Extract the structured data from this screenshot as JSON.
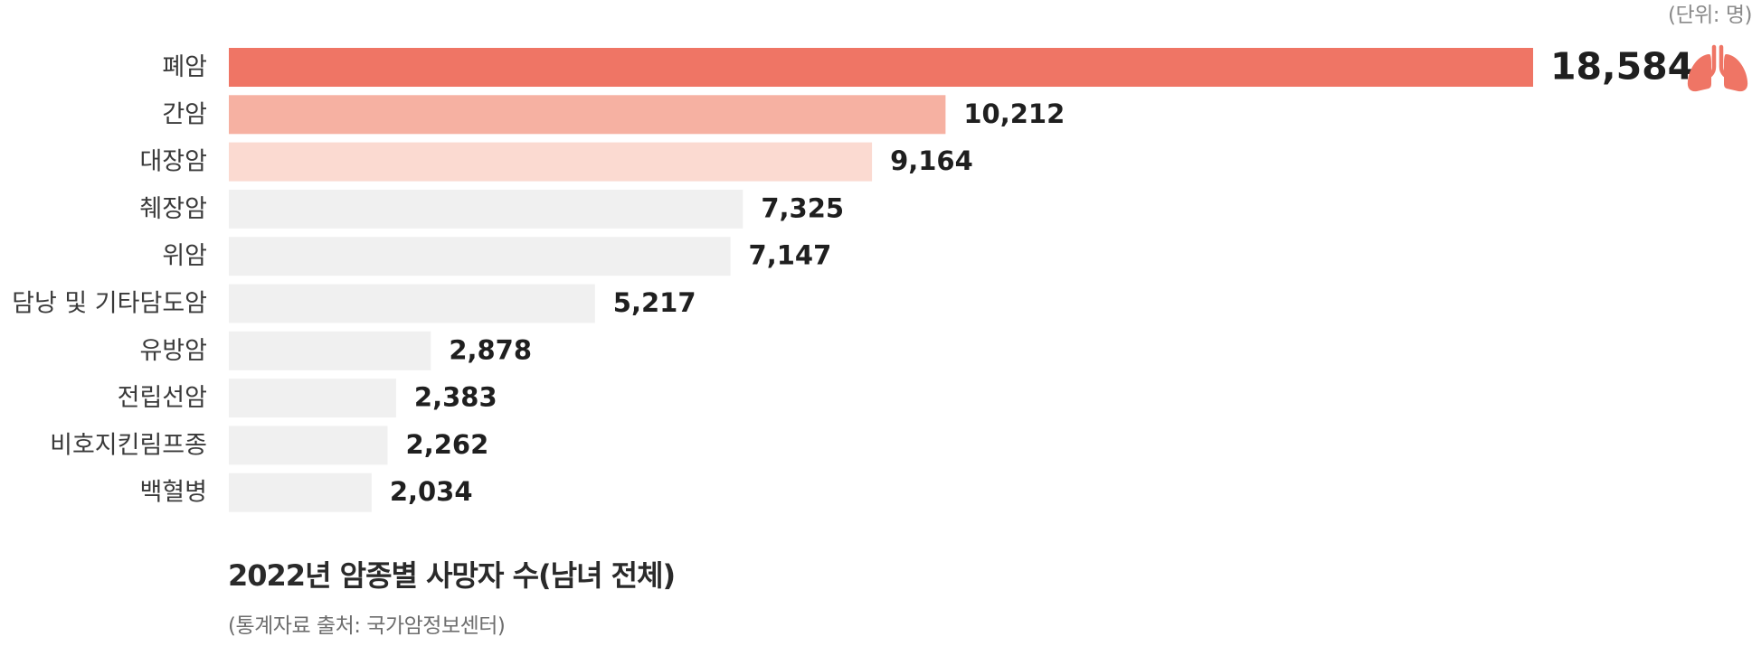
{
  "unit_note": "(단위: 명)",
  "caption": {
    "title": "2022년 암종별 사망자 수(남녀 전체)",
    "source": "(통계자료 출처: 국가암정보센터)"
  },
  "colors": {
    "highlight": "#ef7565",
    "second": "#f6b1a2",
    "third": "#fbdad1",
    "other": "#f0f0f0",
    "value_text": "#1f1f1f",
    "category_text": "#3a3a3a"
  },
  "icon": "lungs-icon",
  "chart_data": {
    "type": "bar",
    "orientation": "horizontal",
    "title": "2022년 암종별 사망자 수(남녀 전체)",
    "unit": "명",
    "categories": [
      "폐암",
      "간암",
      "대장암",
      "췌장암",
      "위암",
      "담낭 및 기타담도암",
      "유방암",
      "전립선암",
      "비호지킨림프종",
      "백혈병"
    ],
    "values": [
      18584,
      10212,
      9164,
      7325,
      7147,
      5217,
      2878,
      2383,
      2262,
      2034
    ],
    "value_labels": [
      "18,584",
      "10,212",
      "9,164",
      "7,325",
      "7,147",
      "5,217",
      "2,878",
      "2,383",
      "2,262",
      "2,034"
    ],
    "bar_colors": [
      "#ef7565",
      "#f6b1a2",
      "#fbdad1",
      "#f0f0f0",
      "#f0f0f0",
      "#f0f0f0",
      "#f0f0f0",
      "#f0f0f0",
      "#f0f0f0",
      "#f0f0f0"
    ],
    "xlim": [
      0,
      18584
    ],
    "grid": false,
    "legend": "none"
  }
}
